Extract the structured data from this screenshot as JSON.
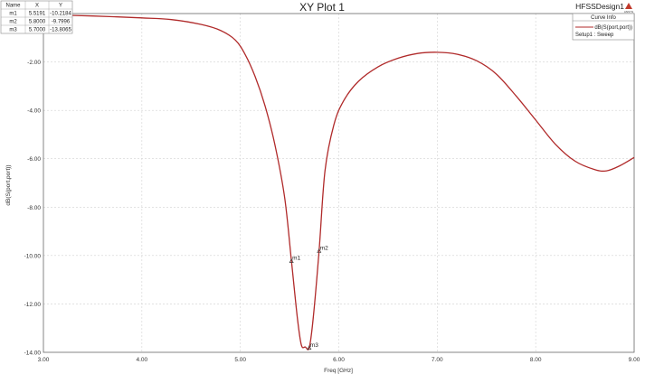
{
  "chart_data": {
    "type": "line",
    "title": "XY Plot 1",
    "design_name": "HFSSDesign1",
    "logo_text": "ANSYS",
    "xlabel": "Freq [GHz]",
    "ylabel": "dB(S(port,port))",
    "xlim": [
      3.0,
      9.0
    ],
    "ylim": [
      -14.0,
      0.0
    ],
    "x_ticks": [
      "3.00",
      "4.00",
      "5.00",
      "6.00",
      "7.00",
      "8.00",
      "9.00"
    ],
    "y_ticks": [
      "-2.00",
      "-4.00",
      "-6.00",
      "-8.00",
      "-10.00",
      "-12.00",
      "-14.00"
    ],
    "grid": true,
    "legend": {
      "title": "Curve Info",
      "placement": "top-right",
      "entry": "dB(S(port,port))",
      "sub": "Setup1 : Sweep",
      "color": "#b02a2a"
    },
    "marker_table": {
      "headers": [
        "Name",
        "X",
        "Y"
      ],
      "rows": [
        [
          "m1",
          "5.5191",
          "-10.2184"
        ],
        [
          "m2",
          "5.8000",
          "-9.7996"
        ],
        [
          "m3",
          "5.7000",
          "-13.8065"
        ]
      ]
    },
    "markers": [
      {
        "name": "m1",
        "x": 5.5191,
        "y": -10.2184
      },
      {
        "name": "m2",
        "x": 5.8,
        "y": -9.7996
      },
      {
        "name": "m3",
        "x": 5.7,
        "y": -13.8065
      }
    ],
    "series": [
      {
        "color": "#b02a2a",
        "points": [
          [
            3.0,
            -0.05
          ],
          [
            3.5,
            -0.1
          ],
          [
            4.0,
            -0.18
          ],
          [
            4.3,
            -0.25
          ],
          [
            4.6,
            -0.45
          ],
          [
            4.8,
            -0.7
          ],
          [
            4.95,
            -1.1
          ],
          [
            5.05,
            -1.7
          ],
          [
            5.15,
            -2.6
          ],
          [
            5.25,
            -3.8
          ],
          [
            5.35,
            -5.4
          ],
          [
            5.45,
            -7.6
          ],
          [
            5.5191,
            -10.2184
          ],
          [
            5.58,
            -12.6
          ],
          [
            5.62,
            -13.7
          ],
          [
            5.66,
            -13.78
          ],
          [
            5.7,
            -13.8065
          ],
          [
            5.74,
            -12.6
          ],
          [
            5.8,
            -9.7996
          ],
          [
            5.86,
            -6.5
          ],
          [
            5.95,
            -4.6
          ],
          [
            6.05,
            -3.6
          ],
          [
            6.2,
            -2.8
          ],
          [
            6.4,
            -2.2
          ],
          [
            6.6,
            -1.85
          ],
          [
            6.8,
            -1.65
          ],
          [
            7.0,
            -1.6
          ],
          [
            7.2,
            -1.68
          ],
          [
            7.4,
            -1.95
          ],
          [
            7.6,
            -2.5
          ],
          [
            7.8,
            -3.4
          ],
          [
            8.0,
            -4.4
          ],
          [
            8.2,
            -5.4
          ],
          [
            8.4,
            -6.1
          ],
          [
            8.6,
            -6.45
          ],
          [
            8.72,
            -6.5
          ],
          [
            8.85,
            -6.3
          ],
          [
            9.0,
            -5.95
          ]
        ]
      }
    ]
  }
}
